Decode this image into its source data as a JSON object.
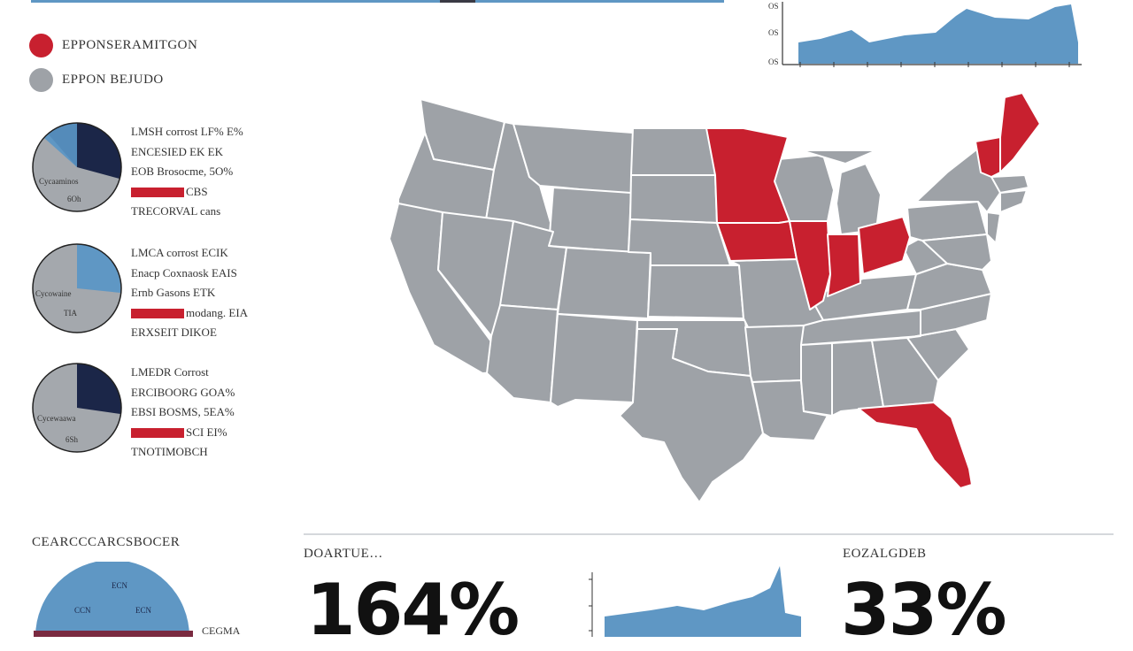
{
  "colors": {
    "highlight": "#c8202f",
    "base": "#9ea2a7",
    "blue": "#5f97c4",
    "navy": "#1b2648"
  },
  "legend": [
    {
      "label": "EPPONSERAMITGON",
      "color": "#c8202f"
    },
    {
      "label": "EPPON BEJUDO",
      "color": "#9ea2a7"
    }
  ],
  "top_chart": {
    "tick_labels": [
      "OS",
      "OS",
      "OS"
    ]
  },
  "pies": [
    {
      "labels": [
        "Cycaaminos",
        "6Oh"
      ],
      "lines": [
        "LMSH corrost LF% E%",
        "ENCESIED EK EK",
        "EOB Brosocme, 5O%",
        "CBS",
        "TRECORVAL cans"
      ]
    },
    {
      "labels": [
        "Cycowaine",
        "TIA"
      ],
      "lines": [
        "LMCA corrost ECIK",
        "Enacp Coxnaosk EAIS",
        "Ernb Gasons ETK",
        "modang. EIA",
        "ERXSEIT DIKOE"
      ]
    },
    {
      "labels": [
        "Cycewaawa",
        "6Sh"
      ],
      "lines": [
        "LMEDR Corrost",
        "ERCIBOORG GOA%",
        "EBSI BOSMS, 5EA%",
        "SCI EI%",
        "TNOTIMOBCH"
      ]
    }
  ],
  "bottom_left": {
    "title": "CEARCCCARCSBOCER",
    "pie_labels": [
      "ECN",
      "CCN",
      "ECN"
    ],
    "footer": "CEGMA"
  },
  "stats": [
    {
      "label": "DOARTUE…",
      "value": "164%"
    },
    {
      "label": "EOZALGDEB",
      "value": "33%"
    }
  ],
  "highlighted_states": [
    "MN",
    "IA",
    "IL",
    "IN",
    "OH",
    "NH",
    "ME",
    "FL"
  ]
}
